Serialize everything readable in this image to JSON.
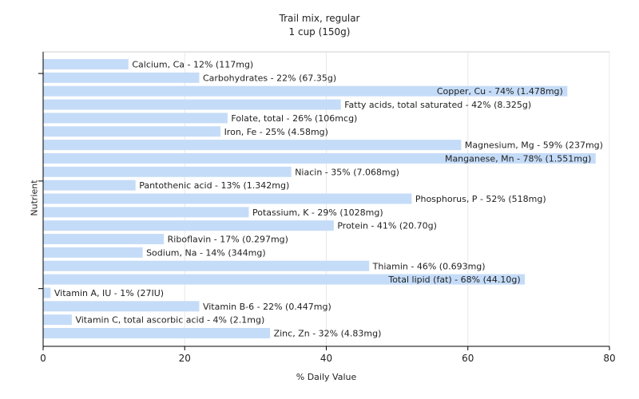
{
  "chart_data": {
    "type": "bar",
    "orientation": "horizontal",
    "title": "Trail mix, regular",
    "subtitle": "1 cup (150g)",
    "xlabel": "% Daily Value",
    "ylabel": "Nutrient",
    "xlim": [
      0,
      80
    ],
    "xticks": [
      0,
      20,
      40,
      60,
      80
    ],
    "grid": "vertical",
    "colors": {
      "bar": "#c5dcf8",
      "grid": "#e8e8e8",
      "axis": "#000000",
      "plot_border": "#cccccc"
    },
    "categories": [
      "Calcium, Ca",
      "Carbohydrates",
      "Copper, Cu",
      "Fatty acids, total saturated",
      "Folate, total",
      "Iron, Fe",
      "Magnesium, Mg",
      "Manganese, Mn",
      "Niacin",
      "Pantothenic acid",
      "Phosphorus, P",
      "Potassium, K",
      "Protein",
      "Riboflavin",
      "Sodium, Na",
      "Thiamin",
      "Total lipid (fat)",
      "Vitamin A, IU",
      "Vitamin B-6",
      "Vitamin C, total ascorbic acid",
      "Zinc, Zn"
    ],
    "values": [
      12,
      22,
      74,
      42,
      26,
      25,
      59,
      78,
      35,
      13,
      52,
      29,
      41,
      17,
      14,
      46,
      68,
      1,
      22,
      4,
      32
    ],
    "labels": [
      "Calcium, Ca - 12% (117mg)",
      "Carbohydrates - 22% (67.35g)",
      "Copper, Cu - 74% (1.478mg)",
      "Fatty acids, total saturated - 42% (8.325g)",
      "Folate, total - 26% (106mcg)",
      "Iron, Fe - 25% (4.58mg)",
      "Magnesium, Mg - 59% (237mg)",
      "Manganese, Mn - 78% (1.551mg)",
      "Niacin - 35% (7.068mg)",
      "Pantothenic acid - 13% (1.342mg)",
      "Phosphorus, P - 52% (518mg)",
      "Potassium, K - 29% (1028mg)",
      "Protein - 41% (20.70g)",
      "Riboflavin - 17% (0.297mg)",
      "Sodium, Na - 14% (344mg)",
      "Thiamin - 46% (0.693mg)",
      "Total lipid (fat) - 68% (44.10g)",
      "Vitamin A, IU - 1% (27IU)",
      "Vitamin B-6 - 22% (0.447mg)",
      "Vitamin C, total ascorbic acid - 4% (2.1mg)",
      "Zinc, Zn - 32% (4.83mg)"
    ]
  }
}
